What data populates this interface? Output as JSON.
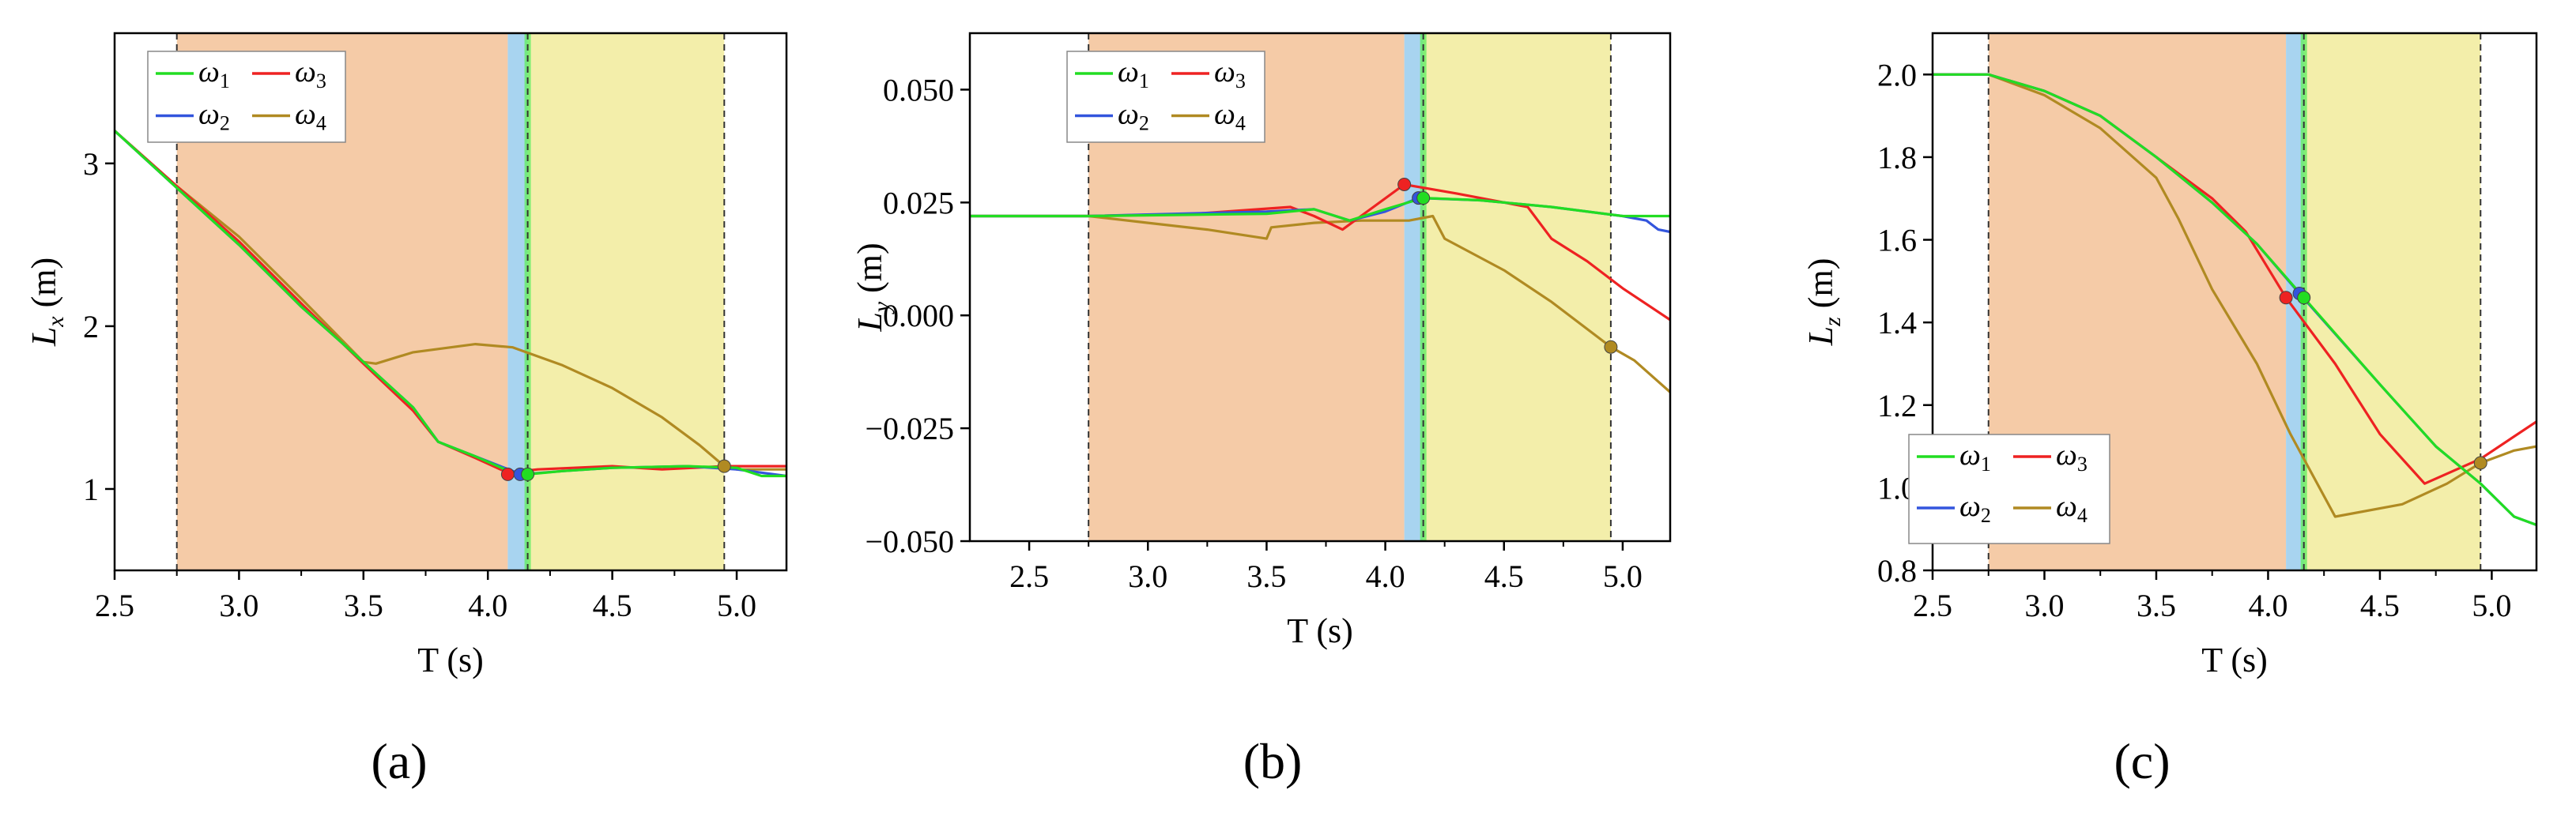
{
  "colors": {
    "w1": "#22dd22",
    "w2": "#3355dd",
    "w3": "#ee2222",
    "w4": "#b08a22",
    "region_orange": "#f5cba7",
    "region_blue": "#a8d4f0",
    "region_yellow": "#f3eeaa"
  },
  "chart_data": [
    {
      "type": "line",
      "label": "(a)",
      "xlabel": "T (s)",
      "ylabel_var": "L",
      "ylabel_sub": "x",
      "ylabel_unit": " (m)",
      "xlim": [
        2.5,
        5.2
      ],
      "ylim": [
        0.5,
        3.8
      ],
      "xticks": [
        "2.5",
        "3.0",
        "3.5",
        "4.0",
        "4.5",
        "5.0"
      ],
      "yticks": [
        "1",
        "2",
        "3"
      ],
      "regions": {
        "orange": [
          2.75,
          4.08
        ],
        "blue": [
          4.08,
          4.16
        ],
        "yellow": [
          4.16,
          4.95
        ]
      },
      "vlines": [
        2.75,
        4.16,
        4.95
      ],
      "legend": {
        "position": "top-left",
        "entries": [
          {
            "key": "w1",
            "base": "ω",
            "sub": "1"
          },
          {
            "key": "w3",
            "base": "ω",
            "sub": "3"
          },
          {
            "key": "w2",
            "base": "ω",
            "sub": "2"
          },
          {
            "key": "w4",
            "base": "ω",
            "sub": "4"
          }
        ]
      },
      "series": [
        {
          "key": "w4",
          "points": [
            [
              2.5,
              3.2
            ],
            [
              2.75,
              2.86
            ],
            [
              3.0,
              2.55
            ],
            [
              3.25,
              2.17
            ],
            [
              3.5,
              1.78
            ],
            [
              3.55,
              1.77
            ],
            [
              3.7,
              1.84
            ],
            [
              3.95,
              1.89
            ],
            [
              4.1,
              1.87
            ],
            [
              4.3,
              1.76
            ],
            [
              4.5,
              1.62
            ],
            [
              4.7,
              1.44
            ],
            [
              4.85,
              1.27
            ],
            [
              4.95,
              1.14
            ],
            [
              5.0,
              1.12
            ],
            [
              5.2,
              1.12
            ]
          ]
        },
        {
          "key": "w3",
          "points": [
            [
              2.5,
              3.2
            ],
            [
              2.75,
              2.86
            ],
            [
              3.0,
              2.52
            ],
            [
              3.25,
              2.14
            ],
            [
              3.5,
              1.77
            ],
            [
              3.7,
              1.48
            ],
            [
              3.8,
              1.29
            ],
            [
              3.95,
              1.19
            ],
            [
              4.08,
              1.1
            ],
            [
              4.2,
              1.12
            ],
            [
              4.5,
              1.14
            ],
            [
              4.7,
              1.12
            ],
            [
              4.95,
              1.14
            ],
            [
              5.2,
              1.14
            ]
          ]
        },
        {
          "key": "w2",
          "points": [
            [
              2.5,
              3.2
            ],
            [
              2.75,
              2.85
            ],
            [
              3.0,
              2.5
            ],
            [
              3.25,
              2.12
            ],
            [
              3.5,
              1.78
            ],
            [
              3.7,
              1.5
            ],
            [
              3.8,
              1.29
            ],
            [
              3.95,
              1.2
            ],
            [
              4.1,
              1.11
            ],
            [
              4.14,
              1.09
            ],
            [
              4.3,
              1.11
            ],
            [
              4.5,
              1.13
            ],
            [
              4.8,
              1.14
            ],
            [
              5.0,
              1.12
            ],
            [
              5.2,
              1.08
            ]
          ]
        },
        {
          "key": "w1",
          "points": [
            [
              2.5,
              3.2
            ],
            [
              2.75,
              2.85
            ],
            [
              3.0,
              2.5
            ],
            [
              3.25,
              2.12
            ],
            [
              3.5,
              1.78
            ],
            [
              3.7,
              1.5
            ],
            [
              3.8,
              1.29
            ],
            [
              3.95,
              1.2
            ],
            [
              4.1,
              1.1
            ],
            [
              4.16,
              1.09
            ],
            [
              4.3,
              1.11
            ],
            [
              4.5,
              1.13
            ],
            [
              4.8,
              1.14
            ],
            [
              5.0,
              1.13
            ],
            [
              5.1,
              1.08
            ],
            [
              5.2,
              1.08
            ]
          ]
        }
      ],
      "markers": [
        {
          "key": "w3",
          "x": 4.08,
          "y": 1.09
        },
        {
          "key": "w2",
          "x": 4.13,
          "y": 1.09
        },
        {
          "key": "w1",
          "x": 4.16,
          "y": 1.09
        },
        {
          "key": "w4",
          "x": 4.95,
          "y": 1.14
        }
      ]
    },
    {
      "type": "line",
      "label": "(b)",
      "xlabel": "T (s)",
      "ylabel_var": "L",
      "ylabel_sub": "y",
      "ylabel_unit": " (m)",
      "xlim": [
        2.25,
        5.2
      ],
      "ylim": [
        -0.05,
        0.0625
      ],
      "xticks": [
        "2.5",
        "3.0",
        "3.5",
        "4.0",
        "4.5",
        "5.0"
      ],
      "yticks": [
        "0.050",
        "0.025",
        "0.000",
        "−0.025",
        "−0.050"
      ],
      "ytick_values": [
        0.05,
        0.025,
        0.0,
        -0.025,
        -0.05
      ],
      "regions": {
        "orange": [
          2.75,
          4.08
        ],
        "blue": [
          4.08,
          4.16
        ],
        "yellow": [
          4.16,
          4.95
        ]
      },
      "vlines": [
        2.75,
        4.16,
        4.95
      ],
      "legend": {
        "position": "top-left",
        "entries": [
          {
            "key": "w1",
            "base": "ω",
            "sub": "1"
          },
          {
            "key": "w3",
            "base": "ω",
            "sub": "3"
          },
          {
            "key": "w2",
            "base": "ω",
            "sub": "2"
          },
          {
            "key": "w4",
            "base": "ω",
            "sub": "4"
          }
        ]
      },
      "series": [
        {
          "key": "w4",
          "points": [
            [
              2.25,
              0.022
            ],
            [
              2.75,
              0.022
            ],
            [
              3.0,
              0.0205
            ],
            [
              3.25,
              0.019
            ],
            [
              3.5,
              0.017
            ],
            [
              3.52,
              0.0195
            ],
            [
              3.7,
              0.0205
            ],
            [
              3.9,
              0.021
            ],
            [
              4.1,
              0.021
            ],
            [
              4.2,
              0.022
            ],
            [
              4.25,
              0.017
            ],
            [
              4.5,
              0.01
            ],
            [
              4.7,
              0.003
            ],
            [
              4.95,
              -0.007
            ],
            [
              5.05,
              -0.01
            ],
            [
              5.2,
              -0.017
            ]
          ]
        },
        {
          "key": "w3",
          "points": [
            [
              2.25,
              0.022
            ],
            [
              2.75,
              0.022
            ],
            [
              3.2,
              0.0225
            ],
            [
              3.6,
              0.024
            ],
            [
              3.7,
              0.022
            ],
            [
              3.82,
              0.019
            ],
            [
              3.95,
              0.024
            ],
            [
              4.08,
              0.029
            ],
            [
              4.3,
              0.027
            ],
            [
              4.5,
              0.025
            ],
            [
              4.6,
              0.024
            ],
            [
              4.7,
              0.017
            ],
            [
              4.85,
              0.012
            ],
            [
              5.0,
              0.006
            ],
            [
              5.2,
              -0.001
            ]
          ]
        },
        {
          "key": "w2",
          "points": [
            [
              2.25,
              0.022
            ],
            [
              2.75,
              0.022
            ],
            [
              3.5,
              0.023
            ],
            [
              3.7,
              0.0235
            ],
            [
              3.85,
              0.021
            ],
            [
              4.0,
              0.023
            ],
            [
              4.14,
              0.026
            ],
            [
              4.4,
              0.0255
            ],
            [
              4.7,
              0.024
            ],
            [
              5.0,
              0.022
            ],
            [
              5.1,
              0.021
            ],
            [
              5.15,
              0.019
            ],
            [
              5.2,
              0.0185
            ]
          ]
        },
        {
          "key": "w1",
          "points": [
            [
              2.25,
              0.022
            ],
            [
              2.75,
              0.022
            ],
            [
              3.5,
              0.0225
            ],
            [
              3.7,
              0.0235
            ],
            [
              3.85,
              0.021
            ],
            [
              4.0,
              0.0235
            ],
            [
              4.16,
              0.026
            ],
            [
              4.4,
              0.0255
            ],
            [
              4.7,
              0.024
            ],
            [
              5.0,
              0.022
            ],
            [
              5.2,
              0.022
            ]
          ]
        }
      ],
      "markers": [
        {
          "key": "w3",
          "x": 4.08,
          "y": 0.029
        },
        {
          "key": "w2",
          "x": 4.14,
          "y": 0.026
        },
        {
          "key": "w1",
          "x": 4.16,
          "y": 0.026
        },
        {
          "key": "w4",
          "x": 4.95,
          "y": -0.007
        }
      ]
    },
    {
      "type": "line",
      "label": "(c)",
      "xlabel": "T (s)",
      "ylabel_var": "L",
      "ylabel_sub": "z",
      "ylabel_unit": " (m)",
      "xlim": [
        2.5,
        5.2
      ],
      "ylim": [
        0.8,
        2.1
      ],
      "xticks": [
        "2.5",
        "3.0",
        "3.5",
        "4.0",
        "4.5",
        "5.0"
      ],
      "yticks": [
        "0.8",
        "1.0",
        "1.2",
        "1.4",
        "1.6",
        "1.8",
        "2.0"
      ],
      "ytick_values": [
        0.8,
        1.0,
        1.2,
        1.4,
        1.6,
        1.8,
        2.0
      ],
      "regions": {
        "orange": [
          2.75,
          4.08
        ],
        "blue": [
          4.08,
          4.16
        ],
        "yellow": [
          4.16,
          4.95
        ]
      },
      "vlines": [
        2.75,
        4.16,
        4.95
      ],
      "legend": {
        "position": "bottom-left",
        "entries": [
          {
            "key": "w1",
            "base": "ω",
            "sub": "1"
          },
          {
            "key": "w3",
            "base": "ω",
            "sub": "3"
          },
          {
            "key": "w2",
            "base": "ω",
            "sub": "2"
          },
          {
            "key": "w4",
            "base": "ω",
            "sub": "4"
          }
        ]
      },
      "series": [
        {
          "key": "w4",
          "points": [
            [
              2.5,
              2.0
            ],
            [
              2.75,
              2.0
            ],
            [
              3.0,
              1.95
            ],
            [
              3.25,
              1.87
            ],
            [
              3.5,
              1.75
            ],
            [
              3.6,
              1.65
            ],
            [
              3.75,
              1.48
            ],
            [
              3.95,
              1.3
            ],
            [
              4.1,
              1.13
            ],
            [
              4.3,
              0.93
            ],
            [
              4.6,
              0.96
            ],
            [
              4.8,
              1.01
            ],
            [
              4.95,
              1.06
            ],
            [
              5.1,
              1.09
            ],
            [
              5.2,
              1.1
            ]
          ]
        },
        {
          "key": "w3",
          "points": [
            [
              2.5,
              2.0
            ],
            [
              2.75,
              2.0
            ],
            [
              3.0,
              1.96
            ],
            [
              3.25,
              1.9
            ],
            [
              3.5,
              1.8
            ],
            [
              3.75,
              1.7
            ],
            [
              3.9,
              1.62
            ],
            [
              4.08,
              1.46
            ],
            [
              4.3,
              1.3
            ],
            [
              4.5,
              1.13
            ],
            [
              4.7,
              1.01
            ],
            [
              4.95,
              1.07
            ],
            [
              5.2,
              1.16
            ]
          ]
        },
        {
          "key": "w2",
          "points": [
            [
              2.5,
              2.0
            ],
            [
              2.75,
              2.0
            ],
            [
              3.0,
              1.96
            ],
            [
              3.25,
              1.9
            ],
            [
              3.5,
              1.8
            ],
            [
              3.75,
              1.69
            ],
            [
              3.95,
              1.59
            ],
            [
              4.14,
              1.47
            ],
            [
              4.5,
              1.25
            ],
            [
              4.75,
              1.1
            ],
            [
              4.95,
              1.01
            ],
            [
              5.1,
              0.93
            ],
            [
              5.2,
              0.91
            ]
          ]
        },
        {
          "key": "w1",
          "points": [
            [
              2.5,
              2.0
            ],
            [
              2.75,
              2.0
            ],
            [
              3.0,
              1.96
            ],
            [
              3.25,
              1.9
            ],
            [
              3.5,
              1.8
            ],
            [
              3.75,
              1.69
            ],
            [
              3.95,
              1.59
            ],
            [
              4.16,
              1.46
            ],
            [
              4.5,
              1.25
            ],
            [
              4.75,
              1.1
            ],
            [
              4.95,
              1.01
            ],
            [
              5.1,
              0.93
            ],
            [
              5.2,
              0.91
            ]
          ]
        }
      ],
      "markers": [
        {
          "key": "w3",
          "x": 4.08,
          "y": 1.46
        },
        {
          "key": "w2",
          "x": 4.14,
          "y": 1.47
        },
        {
          "key": "w1",
          "x": 4.16,
          "y": 1.46
        },
        {
          "key": "w4",
          "x": 4.95,
          "y": 1.06
        }
      ]
    }
  ]
}
